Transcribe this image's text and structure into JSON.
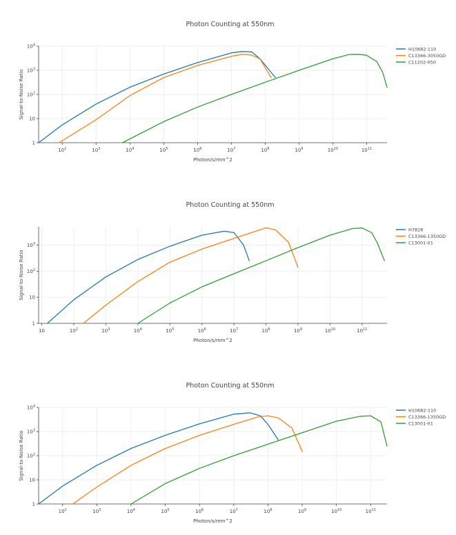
{
  "chart_data": [
    {
      "type": "line",
      "title": "Photon Counting at 550nm",
      "xlabel": "Photon/s/mm^2",
      "ylabel": "Signal-to-Noise Ratio",
      "x_scale": "log",
      "y_scale": "log",
      "xlim": [
        20,
        400000000000.0
      ],
      "ylim": [
        1,
        10000
      ],
      "grid": true,
      "legend_position": "right",
      "x_ticks": [
        {
          "base": "10",
          "exp": "2",
          "value": 100
        },
        {
          "base": "10",
          "exp": "3",
          "value": 1000
        },
        {
          "base": "10",
          "exp": "4",
          "value": 10000
        },
        {
          "base": "10",
          "exp": "5",
          "value": 100000
        },
        {
          "base": "10",
          "exp": "6",
          "value": 1000000
        },
        {
          "base": "10",
          "exp": "7",
          "value": 10000000
        },
        {
          "base": "10",
          "exp": "8",
          "value": 100000000
        },
        {
          "base": "10",
          "exp": "9",
          "value": 1000000000
        },
        {
          "base": "10",
          "exp": "10",
          "value": 10000000000
        },
        {
          "base": "10",
          "exp": "11",
          "value": 100000000000
        }
      ],
      "y_ticks": [
        {
          "base": "1",
          "exp": "",
          "value": 1
        },
        {
          "base": "10",
          "exp": "",
          "value": 10
        },
        {
          "base": "10",
          "exp": "2",
          "value": 100
        },
        {
          "base": "10",
          "exp": "3",
          "value": 1000
        },
        {
          "base": "10",
          "exp": "4",
          "value": 10000
        }
      ],
      "series": [
        {
          "name": "H10682-110",
          "color": "#1f77b4",
          "x": [
            20,
            100,
            1000,
            10000,
            100000,
            1000000,
            10000000,
            20000000,
            40000000,
            70000000,
            200000000
          ],
          "y": [
            1,
            5.5,
            40,
            200,
            700,
            2100,
            5300,
            6000,
            5800,
            3000,
            500
          ]
        },
        {
          "name": "C13366-3050GD",
          "color": "#ff7f0e",
          "x": [
            80,
            1000,
            10000,
            100000,
            1000000,
            10000000,
            20000000,
            40000000,
            70000000,
            150000000
          ],
          "y": [
            1,
            9,
            90,
            500,
            1600,
            3800,
            4600,
            4300,
            3000,
            500
          ]
        },
        {
          "name": "C11202-050",
          "color": "#2ca02c",
          "x": [
            6000,
            100000,
            1000000,
            10000000,
            100000000,
            1000000000,
            10000000000,
            30000000000,
            60000000000,
            100000000000,
            200000000000,
            300000000000,
            400000000000
          ],
          "y": [
            1,
            7.5,
            30,
            100,
            320,
            1000,
            3000,
            4500,
            4600,
            4200,
            2300,
            800,
            200
          ]
        }
      ]
    },
    {
      "type": "line",
      "title": "Photon Counting at 550nm",
      "xlabel": "Photon/s/mm^2",
      "ylabel": "Signal-to-Noise Ratio",
      "x_scale": "log",
      "y_scale": "log",
      "xlim": [
        8,
        600000000000.0
      ],
      "ylim": [
        1,
        5000
      ],
      "grid": true,
      "legend_position": "right",
      "x_ticks": [
        {
          "base": "10",
          "exp": "",
          "value": 10
        },
        {
          "base": "10",
          "exp": "2",
          "value": 100
        },
        {
          "base": "10",
          "exp": "3",
          "value": 1000
        },
        {
          "base": "10",
          "exp": "4",
          "value": 10000
        },
        {
          "base": "10",
          "exp": "5",
          "value": 100000
        },
        {
          "base": "10",
          "exp": "6",
          "value": 1000000
        },
        {
          "base": "10",
          "exp": "7",
          "value": 10000000
        },
        {
          "base": "10",
          "exp": "8",
          "value": 100000000
        },
        {
          "base": "10",
          "exp": "9",
          "value": 1000000000
        },
        {
          "base": "10",
          "exp": "10",
          "value": 10000000000
        },
        {
          "base": "10",
          "exp": "11",
          "value": 100000000000
        }
      ],
      "y_ticks": [
        {
          "base": "1",
          "exp": "",
          "value": 1
        },
        {
          "base": "10",
          "exp": "",
          "value": 10
        },
        {
          "base": "10",
          "exp": "2",
          "value": 100
        },
        {
          "base": "10",
          "exp": "3",
          "value": 1000
        }
      ],
      "series": [
        {
          "name": "H7828",
          "color": "#1f77b4",
          "x": [
            15,
            100,
            1000,
            10000,
            100000,
            1000000,
            5000000,
            10000000,
            20000000,
            30000000
          ],
          "y": [
            1,
            8,
            60,
            280,
            900,
            2400,
            3400,
            3000,
            1000,
            250
          ]
        },
        {
          "name": "C13366-1350GD",
          "color": "#ff7f0e",
          "x": [
            200,
            1000,
            10000,
            100000,
            1000000,
            10000000,
            100000000,
            200000000,
            500000000,
            1000000000
          ],
          "y": [
            1,
            5,
            40,
            220,
            700,
            1800,
            4600,
            3800,
            1300,
            140
          ]
        },
        {
          "name": "C13001-01",
          "color": "#2ca02c",
          "x": [
            10000,
            100000,
            1000000,
            10000000,
            100000000,
            1000000000,
            10000000000,
            50000000000,
            100000000000,
            200000000000,
            300000000000,
            500000000000
          ],
          "y": [
            1,
            6,
            25,
            80,
            250,
            800,
            2400,
            4300,
            4500,
            3000,
            1200,
            250
          ]
        }
      ]
    },
    {
      "type": "line",
      "title": "Photon Counting at 550nm",
      "xlabel": "Photon/s/mm^2",
      "ylabel": "Signal-to-Noise Ratio",
      "x_scale": "log",
      "y_scale": "log",
      "xlim": [
        20,
        300000000000.0
      ],
      "ylim": [
        1,
        10000
      ],
      "grid": true,
      "legend_position": "right",
      "x_ticks": [
        {
          "base": "10",
          "exp": "2",
          "value": 100
        },
        {
          "base": "10",
          "exp": "3",
          "value": 1000
        },
        {
          "base": "10",
          "exp": "4",
          "value": 10000
        },
        {
          "base": "10",
          "exp": "5",
          "value": 100000
        },
        {
          "base": "10",
          "exp": "6",
          "value": 1000000
        },
        {
          "base": "10",
          "exp": "7",
          "value": 10000000
        },
        {
          "base": "10",
          "exp": "8",
          "value": 100000000
        },
        {
          "base": "10",
          "exp": "9",
          "value": 1000000000
        },
        {
          "base": "10",
          "exp": "10",
          "value": 10000000000
        },
        {
          "base": "10",
          "exp": "11",
          "value": 100000000000
        }
      ],
      "y_ticks": [
        {
          "base": "1",
          "exp": "",
          "value": 1
        },
        {
          "base": "10",
          "exp": "",
          "value": 10
        },
        {
          "base": "10",
          "exp": "2",
          "value": 100
        },
        {
          "base": "10",
          "exp": "3",
          "value": 1000
        },
        {
          "base": "10",
          "exp": "4",
          "value": 10000
        }
      ],
      "series": [
        {
          "name": "H10682-110",
          "color": "#1f77b4",
          "x": [
            20,
            100,
            1000,
            10000,
            100000,
            1000000,
            10000000,
            30000000,
            60000000,
            100000000,
            200000000
          ],
          "y": [
            1,
            5.5,
            40,
            200,
            700,
            2100,
            5300,
            6000,
            4500,
            2000,
            450
          ]
        },
        {
          "name": "C13366-1350GD",
          "color": "#ff7f0e",
          "x": [
            200,
            1000,
            10000,
            100000,
            1000000,
            10000000,
            50000000,
            100000000,
            200000000,
            500000000,
            1000000000
          ],
          "y": [
            1,
            5,
            40,
            200,
            700,
            2000,
            4000,
            4500,
            3700,
            1400,
            150
          ]
        },
        {
          "name": "C13001-01",
          "color": "#2ca02c",
          "x": [
            10000,
            100000,
            1000000,
            10000000,
            100000000,
            1000000000,
            10000000000,
            50000000000,
            100000000000,
            200000000000,
            300000000000
          ],
          "y": [
            1,
            7,
            30,
            100,
            300,
            900,
            2700,
            4300,
            4500,
            2500,
            250
          ]
        }
      ]
    }
  ]
}
